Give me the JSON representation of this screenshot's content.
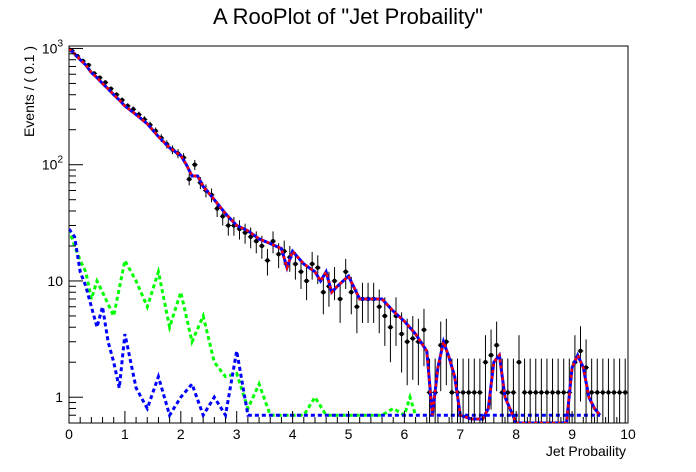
{
  "chart_data": {
    "type": "scatter",
    "title": "A RooPlot of \"Jet Probaility\"",
    "xlabel": "Jet Probaility",
    "ylabel": "Events / ( 0.1 )",
    "xlim": [
      0,
      10
    ],
    "ylim": [
      0.6,
      1050
    ],
    "yscale": "log",
    "grid": false,
    "xticks": [
      "0",
      "1",
      "2",
      "3",
      "4",
      "5",
      "6",
      "7",
      "8",
      "9",
      "10"
    ],
    "yticks": [
      {
        "base": "1",
        "exp": "",
        "value": 1
      },
      {
        "base": "10",
        "exp": "",
        "value": 10
      },
      {
        "base": "10",
        "exp": "2",
        "value": 100
      },
      {
        "base": "10",
        "exp": "3",
        "value": 1000
      }
    ],
    "colors": {
      "data": "#000000",
      "total": "#ff0000",
      "blue_component": "#0000ff",
      "green_component": "#00ff00"
    },
    "series": [
      {
        "kind": "data_points",
        "color": "#000000",
        "x": [
          0.05,
          0.15,
          0.25,
          0.35,
          0.45,
          0.55,
          0.65,
          0.75,
          0.85,
          0.95,
          1.05,
          1.15,
          1.25,
          1.35,
          1.45,
          1.55,
          1.65,
          1.75,
          1.85,
          1.95,
          2.05,
          2.15,
          2.25,
          2.35,
          2.45,
          2.55,
          2.65,
          2.75,
          2.85,
          2.95,
          3.05,
          3.15,
          3.25,
          3.35,
          3.45,
          3.55,
          3.65,
          3.75,
          3.85,
          3.95,
          4.05,
          4.15,
          4.25,
          4.35,
          4.45,
          4.55,
          4.65,
          4.75,
          4.85,
          4.95,
          5.05,
          5.15,
          5.25,
          5.35,
          5.45,
          5.55,
          5.65,
          5.75,
          5.85,
          5.95,
          6.05,
          6.15,
          6.25,
          6.35,
          6.45,
          6.55,
          6.65,
          6.75,
          6.85,
          6.95,
          7.05,
          7.15,
          7.25,
          7.35,
          7.45,
          7.55,
          7.65,
          7.75,
          7.85,
          7.95,
          8.05,
          8.15,
          8.25,
          8.35,
          8.45,
          8.55,
          8.65,
          8.75,
          8.85,
          8.95,
          9.05,
          9.15,
          9.25,
          9.35,
          9.45,
          9.55,
          9.65,
          9.75,
          9.85,
          9.95
        ],
        "y": [
          960,
          860,
          780,
          720,
          610,
          560,
          510,
          450,
          400,
          360,
          320,
          300,
          270,
          245,
          220,
          195,
          170,
          150,
          135,
          125,
          115,
          75,
          100,
          70,
          60,
          55,
          42,
          36,
          30,
          30,
          28,
          26,
          24,
          22,
          20,
          15,
          22,
          17,
          18,
          16,
          14,
          12,
          10,
          14,
          13,
          8,
          9,
          10,
          7,
          12,
          8,
          6,
          7,
          7,
          7,
          6,
          5,
          4,
          5,
          3.5,
          3,
          3.2,
          3,
          3.8,
          1.1,
          1.1,
          2.8,
          3.0,
          1.1,
          1.1,
          1.1,
          1.1,
          1.1,
          1.1,
          2.0,
          2.3,
          2.8,
          1.1,
          1.1,
          1.1,
          2.0,
          1.1,
          1.1,
          1.1,
          1.1,
          1.1,
          1.1,
          1.1,
          1.1,
          1.1,
          2.0,
          2.5,
          1.8,
          1.1,
          1.1,
          1.1,
          1.1,
          1.1,
          1.1,
          1.1
        ]
      },
      {
        "kind": "total_fit",
        "color": "#ff0000",
        "x": [
          0.0,
          0.1,
          0.2,
          0.3,
          0.4,
          0.5,
          0.6,
          0.7,
          0.8,
          0.9,
          1.0,
          1.2,
          1.4,
          1.6,
          1.8,
          2.0,
          2.1,
          2.2,
          2.3,
          2.4,
          2.6,
          2.8,
          3.0,
          3.2,
          3.4,
          3.6,
          3.8,
          3.9,
          4.0,
          4.2,
          4.4,
          4.5,
          4.6,
          4.7,
          4.8,
          5.0,
          5.2,
          5.4,
          5.6,
          5.8,
          6.0,
          6.2,
          6.4,
          6.5,
          6.6,
          6.7,
          6.8,
          6.9,
          7.0,
          7.2,
          7.4,
          7.5,
          7.6,
          7.7,
          7.8,
          8.0,
          8.2,
          8.4,
          8.6,
          8.8,
          8.9,
          9.0,
          9.1,
          9.2,
          9.3,
          9.4,
          9.5
        ],
        "y": [
          1000,
          900,
          800,
          720,
          620,
          560,
          500,
          450,
          400,
          360,
          320,
          270,
          225,
          175,
          140,
          120,
          100,
          80,
          80,
          65,
          50,
          38,
          30,
          27,
          23,
          21,
          19,
          13,
          18,
          14,
          12,
          10,
          12,
          8,
          9,
          11,
          7,
          7,
          7,
          5.5,
          4.5,
          3.5,
          2.5,
          0.7,
          1.8,
          3.0,
          2.2,
          1.5,
          0.7,
          0.65,
          0.65,
          0.8,
          2.0,
          2.3,
          1.0,
          0.6,
          0.6,
          0.6,
          0.6,
          0.6,
          0.6,
          1.8,
          2.3,
          1.8,
          1.0,
          0.8,
          0.7
        ]
      },
      {
        "kind": "blue_component",
        "color": "#0000ff",
        "x": [
          0.0,
          0.1,
          0.2,
          0.3,
          0.4,
          0.5,
          0.6,
          0.7,
          0.8,
          0.9,
          1.0,
          1.2,
          1.4,
          1.6,
          1.8,
          2.0,
          2.2,
          2.4,
          2.6,
          2.8,
          3.0,
          3.2,
          3.4,
          3.6,
          3.8,
          4.0,
          4.2,
          4.4,
          4.6,
          4.8,
          5.0,
          5.2,
          5.4,
          5.6,
          5.8,
          6.0,
          6.2,
          6.4,
          6.6,
          6.8,
          7.0,
          7.2,
          7.4,
          7.6,
          7.7,
          7.8,
          8.0,
          8.2,
          8.4,
          8.6,
          8.8,
          9.0,
          9.1,
          9.2,
          9.3,
          9.4,
          9.5
        ],
        "y": [
          28,
          24,
          12,
          9,
          6,
          4,
          6,
          3,
          2,
          1.2,
          3.5,
          1.2,
          0.8,
          1.5,
          0.7,
          1.0,
          1.3,
          0.7,
          1.0,
          0.7,
          2.5,
          0.7,
          0.7,
          0.7,
          0.7,
          0.7,
          0.7,
          0.7,
          0.7,
          0.7,
          0.7,
          0.7,
          0.7,
          0.7,
          0.7,
          0.7,
          0.7,
          0.7,
          0.7,
          0.7,
          0.7,
          0.7,
          0.7,
          0.7,
          0.7,
          0.7,
          0.7,
          0.7,
          0.7,
          0.7,
          0.7,
          0.7,
          0.7,
          0.7,
          0.7,
          0.7,
          0.7
        ]
      },
      {
        "kind": "green_component",
        "color": "#00ff00",
        "x": [
          0.0,
          0.1,
          0.2,
          0.3,
          0.4,
          0.5,
          0.6,
          0.8,
          1.0,
          1.2,
          1.4,
          1.6,
          1.8,
          2.0,
          2.2,
          2.4,
          2.6,
          2.8,
          3.0,
          3.2,
          3.4,
          3.6,
          4.0,
          4.2,
          4.4,
          4.6,
          5.0,
          5.2,
          5.4,
          5.6,
          5.8,
          6.0,
          6.1,
          6.2
        ],
        "y": [
          28,
          20,
          15,
          12,
          7,
          10,
          8,
          5,
          15,
          10,
          6,
          12,
          4,
          8,
          3,
          5,
          2,
          1.5,
          1.6,
          0.8,
          1.3,
          0.7,
          0.7,
          0.7,
          1.0,
          0.7,
          0.7,
          0.7,
          0.7,
          0.7,
          0.8,
          0.7,
          1.0,
          0.7
        ]
      }
    ]
  }
}
